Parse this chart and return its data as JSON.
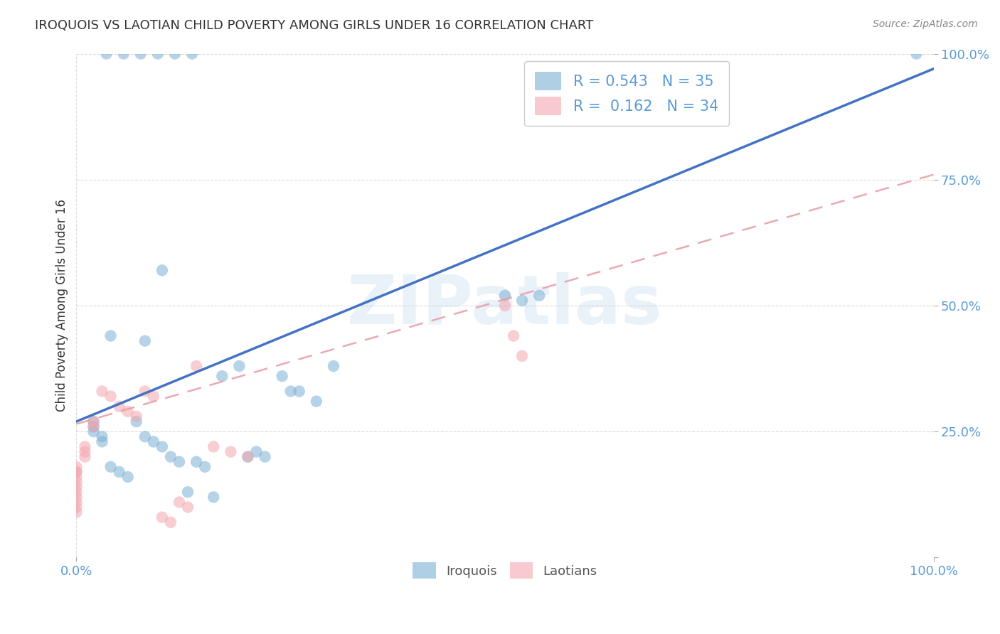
{
  "title": "IROQUOIS VS LAOTIAN CHILD POVERTY AMONG GIRLS UNDER 16 CORRELATION CHART",
  "source": "Source: ZipAtlas.com",
  "ylabel": "Child Poverty Among Girls Under 16",
  "xlim": [
    0,
    1
  ],
  "ylim": [
    0,
    1
  ],
  "y_ticks": [
    0.0,
    0.25,
    0.5,
    0.75,
    1.0
  ],
  "y_tick_labels": [
    "",
    "25.0%",
    "50.0%",
    "75.0%",
    "100.0%"
  ],
  "x_ticks": [
    0.0,
    1.0
  ],
  "x_tick_labels": [
    "0.0%",
    "100.0%"
  ],
  "iroquois_color": "#7BAFD4",
  "laotian_color": "#F4A7B0",
  "iroquois_line_color": "#4472C4",
  "laotian_line_color": "#E8A0A8",
  "tick_label_color": "#5B9BD5",
  "R_iroquois": 0.543,
  "N_iroquois": 35,
  "R_laotian": 0.162,
  "N_laotian": 34,
  "grid_color": "#CCCCCC",
  "background_color": "#FFFFFF",
  "watermark": "ZIPatlas",
  "iroquois_line_x": [
    0.0,
    1.0
  ],
  "iroquois_line_y": [
    0.27,
    0.97
  ],
  "laotian_line_x": [
    0.0,
    1.0
  ],
  "laotian_line_y": [
    0.265,
    0.76
  ],
  "iroquois_x": [
    0.02,
    0.02,
    0.02,
    0.03,
    0.03,
    0.04,
    0.04,
    0.05,
    0.06,
    0.07,
    0.08,
    0.09,
    0.1,
    0.11,
    0.12,
    0.13,
    0.14,
    0.16,
    0.17,
    0.19,
    0.21,
    0.22,
    0.24,
    0.26,
    0.28,
    0.3,
    0.5,
    0.52,
    0.54,
    0.08,
    0.1,
    0.15,
    0.2,
    0.25,
    0.98
  ],
  "iroquois_y": [
    0.27,
    0.26,
    0.25,
    0.24,
    0.23,
    0.18,
    0.44,
    0.17,
    0.16,
    0.27,
    0.24,
    0.23,
    0.22,
    0.2,
    0.19,
    0.13,
    0.19,
    0.12,
    0.36,
    0.38,
    0.21,
    0.2,
    0.36,
    0.33,
    0.31,
    0.38,
    0.52,
    0.51,
    0.52,
    0.43,
    0.57,
    0.18,
    0.2,
    0.33,
    1.0
  ],
  "laotian_x": [
    0.0,
    0.0,
    0.0,
    0.0,
    0.0,
    0.0,
    0.0,
    0.0,
    0.0,
    0.0,
    0.0,
    0.01,
    0.01,
    0.01,
    0.02,
    0.02,
    0.03,
    0.04,
    0.05,
    0.06,
    0.07,
    0.08,
    0.09,
    0.1,
    0.11,
    0.12,
    0.13,
    0.14,
    0.16,
    0.18,
    0.2,
    0.5,
    0.51,
    0.52
  ],
  "laotian_y": [
    0.14,
    0.15,
    0.16,
    0.17,
    0.18,
    0.17,
    0.13,
    0.12,
    0.11,
    0.1,
    0.09,
    0.22,
    0.21,
    0.2,
    0.27,
    0.26,
    0.33,
    0.32,
    0.3,
    0.29,
    0.28,
    0.33,
    0.32,
    0.08,
    0.07,
    0.11,
    0.1,
    0.38,
    0.22,
    0.21,
    0.2,
    0.5,
    0.44,
    0.4
  ],
  "top_iroquois_x": [
    0.035,
    0.055,
    0.075,
    0.095,
    0.115,
    0.135
  ],
  "top_iroquois_y": [
    1.0,
    1.0,
    1.0,
    1.0,
    1.0,
    1.0
  ]
}
